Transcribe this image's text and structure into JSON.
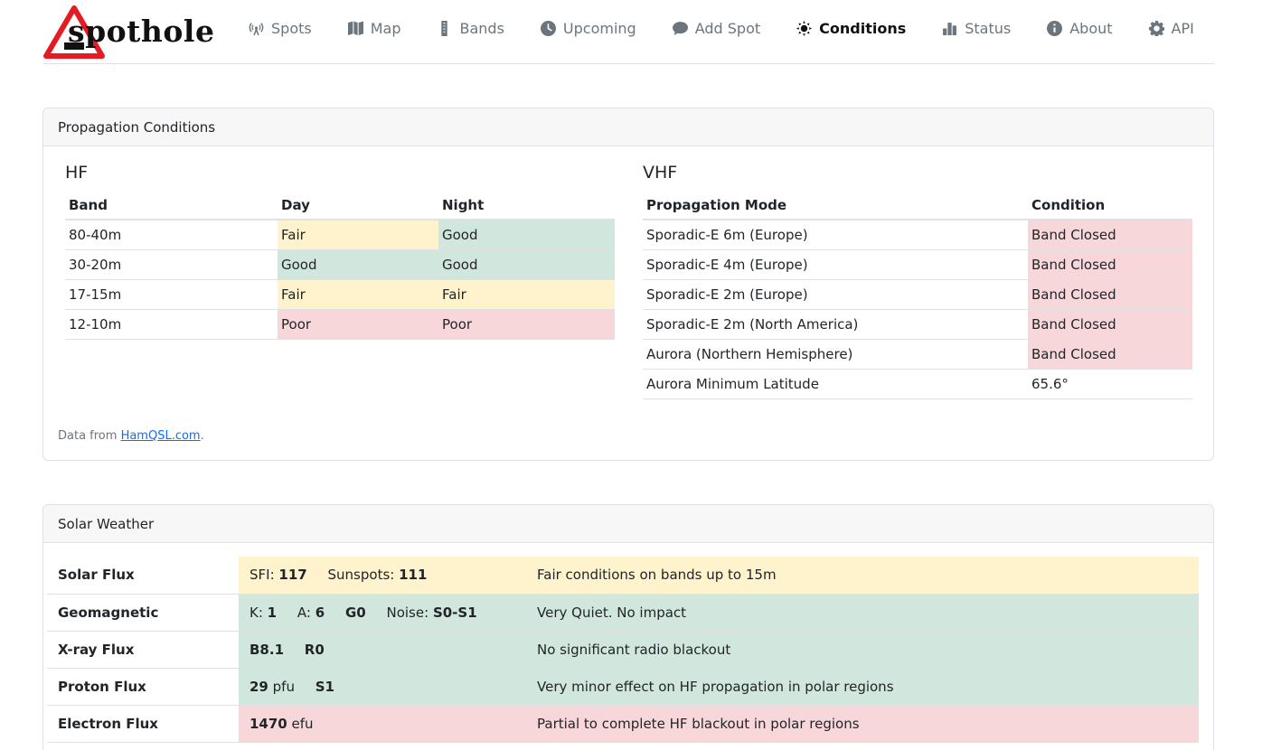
{
  "nav": {
    "logo_text": "spothole",
    "items": [
      {
        "label": "Spots",
        "icon": "radio-tower-icon"
      },
      {
        "label": "Map",
        "icon": "map-icon"
      },
      {
        "label": "Bands",
        "icon": "ruler-icon"
      },
      {
        "label": "Upcoming",
        "icon": "clock-icon"
      },
      {
        "label": "Add Spot",
        "icon": "comment-icon"
      },
      {
        "label": "Conditions",
        "icon": "sun-icon"
      },
      {
        "label": "Status",
        "icon": "bar-chart-icon"
      },
      {
        "label": "About",
        "icon": "info-icon"
      },
      {
        "label": "API",
        "icon": "gear-icon"
      }
    ],
    "active": "Conditions"
  },
  "propagation": {
    "title": "Propagation Conditions",
    "hf": {
      "title": "HF",
      "headers": [
        "Band",
        "Day",
        "Night"
      ],
      "rows": [
        {
          "band": "80-40m",
          "day": "Fair",
          "night": "Good"
        },
        {
          "band": "30-20m",
          "day": "Good",
          "night": "Good"
        },
        {
          "band": "17-15m",
          "day": "Fair",
          "night": "Fair"
        },
        {
          "band": "12-10m",
          "day": "Poor",
          "night": "Poor"
        }
      ]
    },
    "vhf": {
      "title": "VHF",
      "headers": [
        "Propagation Mode",
        "Condition"
      ],
      "rows": [
        {
          "mode": "Sporadic-E 6m (Europe)",
          "condition": "Band Closed"
        },
        {
          "mode": "Sporadic-E 4m (Europe)",
          "condition": "Band Closed"
        },
        {
          "mode": "Sporadic-E 2m (Europe)",
          "condition": "Band Closed"
        },
        {
          "mode": "Sporadic-E 2m (North America)",
          "condition": "Band Closed"
        },
        {
          "mode": "Aurora (Northern Hemisphere)",
          "condition": "Band Closed"
        },
        {
          "mode": "Aurora Minimum Latitude",
          "condition": "65.6°"
        }
      ]
    },
    "footnote_prefix": "Data from ",
    "footnote_link": "HamQSL.com",
    "footnote_suffix": "."
  },
  "solar": {
    "title": "Solar Weather",
    "rows": {
      "solar_flux": {
        "label": "Solar Flux",
        "sfi_label": "SFI:",
        "sfi": "117",
        "sunspots_label": "Sunspots:",
        "sunspots": "111",
        "desc": "Fair conditions on bands up to 15m"
      },
      "geomagnetic": {
        "label": "Geomagnetic",
        "k_label": "K:",
        "k": "1",
        "a_label": "A:",
        "a": "6",
        "g": "G0",
        "noise_label": "Noise:",
        "noise": "S0-S1",
        "desc": "Very Quiet. No impact"
      },
      "xray": {
        "label": "X-ray Flux",
        "value": "B8.1",
        "r": "R0",
        "desc": "No significant radio blackout"
      },
      "proton": {
        "label": "Proton Flux",
        "value": "29",
        "unit": "pfu",
        "s": "S1",
        "desc": "Very minor effect on HF propagation in polar regions"
      },
      "electron": {
        "label": "Electron Flux",
        "value": "1470",
        "unit": "efu",
        "desc": "Partial to complete HF blackout in polar regions"
      }
    }
  },
  "colors": {
    "fair": "#fff3cd",
    "good": "#d1e7dd",
    "poor": "#f8d7da",
    "link": "#0d6efd"
  }
}
